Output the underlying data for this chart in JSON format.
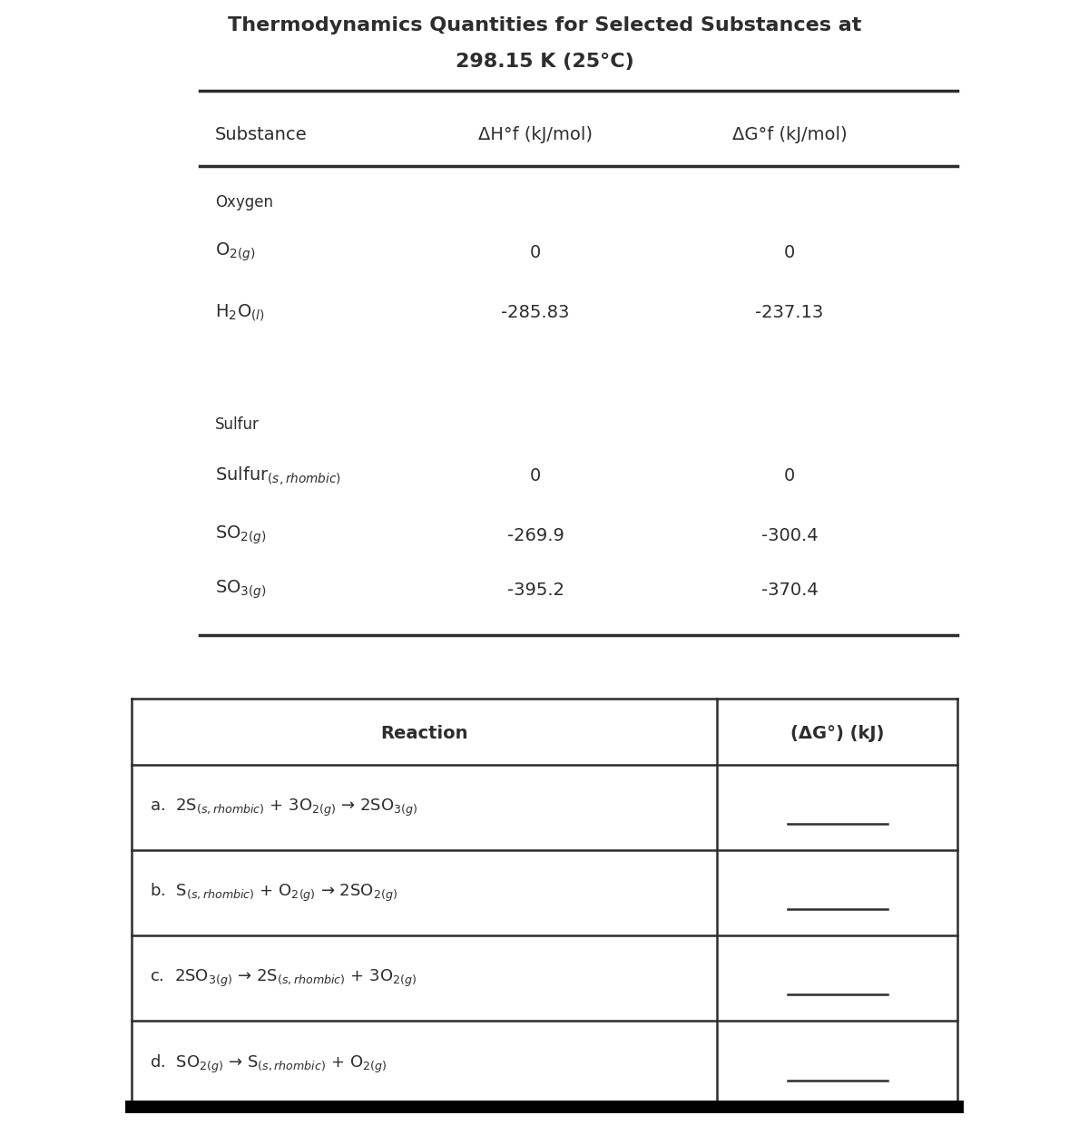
{
  "title_line1": "Thermodynamics Quantities for Selected Substances at",
  "title_line2": "298.15 K (25°C)",
  "bg_color": "#ffffff",
  "font_color": "#2d2d2d",
  "line_color": "#2d2d2d",
  "top_table": {
    "col_headers": [
      "Substance",
      "ΔH°f (kJ/mol)",
      "ΔG°f (kJ/mol)"
    ],
    "sections": [
      {
        "section_label": "Oxygen",
        "rows": [
          {
            "substance": "O$_{2(g)}$",
            "dHf": "0",
            "dGf": "0"
          },
          {
            "substance": "H$_2$O$_{(l)}$",
            "dHf": "-285.83",
            "dGf": "-237.13"
          }
        ]
      },
      {
        "section_label": "Sulfur",
        "rows": [
          {
            "substance": "Sulfur$_{(s, rhombic)}$",
            "dHf": "0",
            "dGf": "0"
          },
          {
            "substance": "SO$_{2(g)}$",
            "dHf": "-269.9",
            "dGf": "-300.4"
          },
          {
            "substance": "SO$_{3(g)}$",
            "dHf": "-395.2",
            "dGf": "-370.4"
          }
        ]
      }
    ]
  },
  "bottom_table": {
    "col_headers": [
      "Reaction",
      "(ΔG°) (kJ)"
    ],
    "rows": [
      "a.  2S$_{(s, rhombic)}$ + 3O$_{2(g)}$ → 2SO$_{3(g)}$",
      "b.  S$_{(s, rhombic)}$ + O$_{2(g)}$ → 2SO$_{2(g)}$",
      "c.  2SO$_{3(g)}$ → 2S$_{(s, rhombic)}$ + 3O$_{2(g)}$",
      "d.  SO$_{2(g)}$ → S$_{(s, rhombic)}$ + O$_{2(g)}$"
    ]
  }
}
